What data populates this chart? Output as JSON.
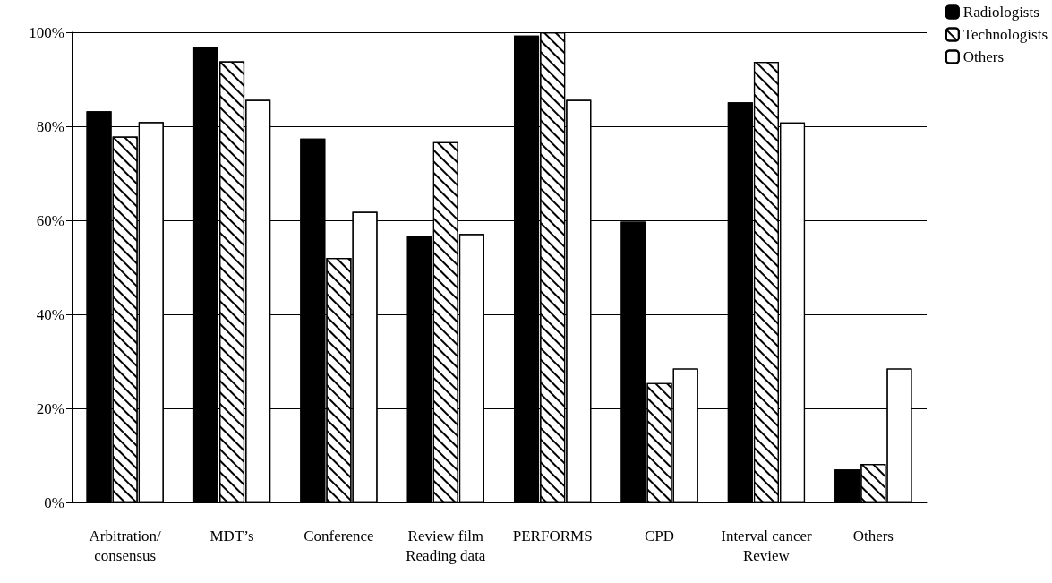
{
  "chart_data": {
    "type": "bar",
    "categories": [
      "Arbitration/\nconsensus",
      "MDT’s",
      "Conference",
      "Review film\nReading data",
      "PERFORMS",
      "CPD",
      "Interval cancer\nReview",
      "Others"
    ],
    "series": [
      {
        "name": "Radiologists",
        "color": "#000000",
        "values": [
          83.2,
          96.9,
          77.4,
          56.7,
          99.3,
          59.7,
          85.1,
          7.0
        ]
      },
      {
        "name": "Technologists",
        "color": "#ffffff",
        "values": [
          77.8,
          93.8,
          52.0,
          76.6,
          100,
          25.4,
          93.7,
          8.2
        ]
      },
      {
        "name": "Others",
        "color": "#ffffff",
        "values": [
          80.9,
          85.6,
          61.8,
          57.1,
          85.6,
          28.5,
          80.8,
          28.5
        ]
      }
    ],
    "ylim": [
      0,
      100
    ],
    "yticks": [
      {
        "value": 0,
        "label": "0%"
      },
      {
        "value": 20,
        "label": "20%"
      },
      {
        "value": 40,
        "label": "40%"
      },
      {
        "value": 60,
        "label": "60%"
      },
      {
        "value": 80,
        "label": "80%"
      },
      {
        "value": 100,
        "label": "100%"
      }
    ],
    "grid": "y",
    "legend": "top right"
  }
}
